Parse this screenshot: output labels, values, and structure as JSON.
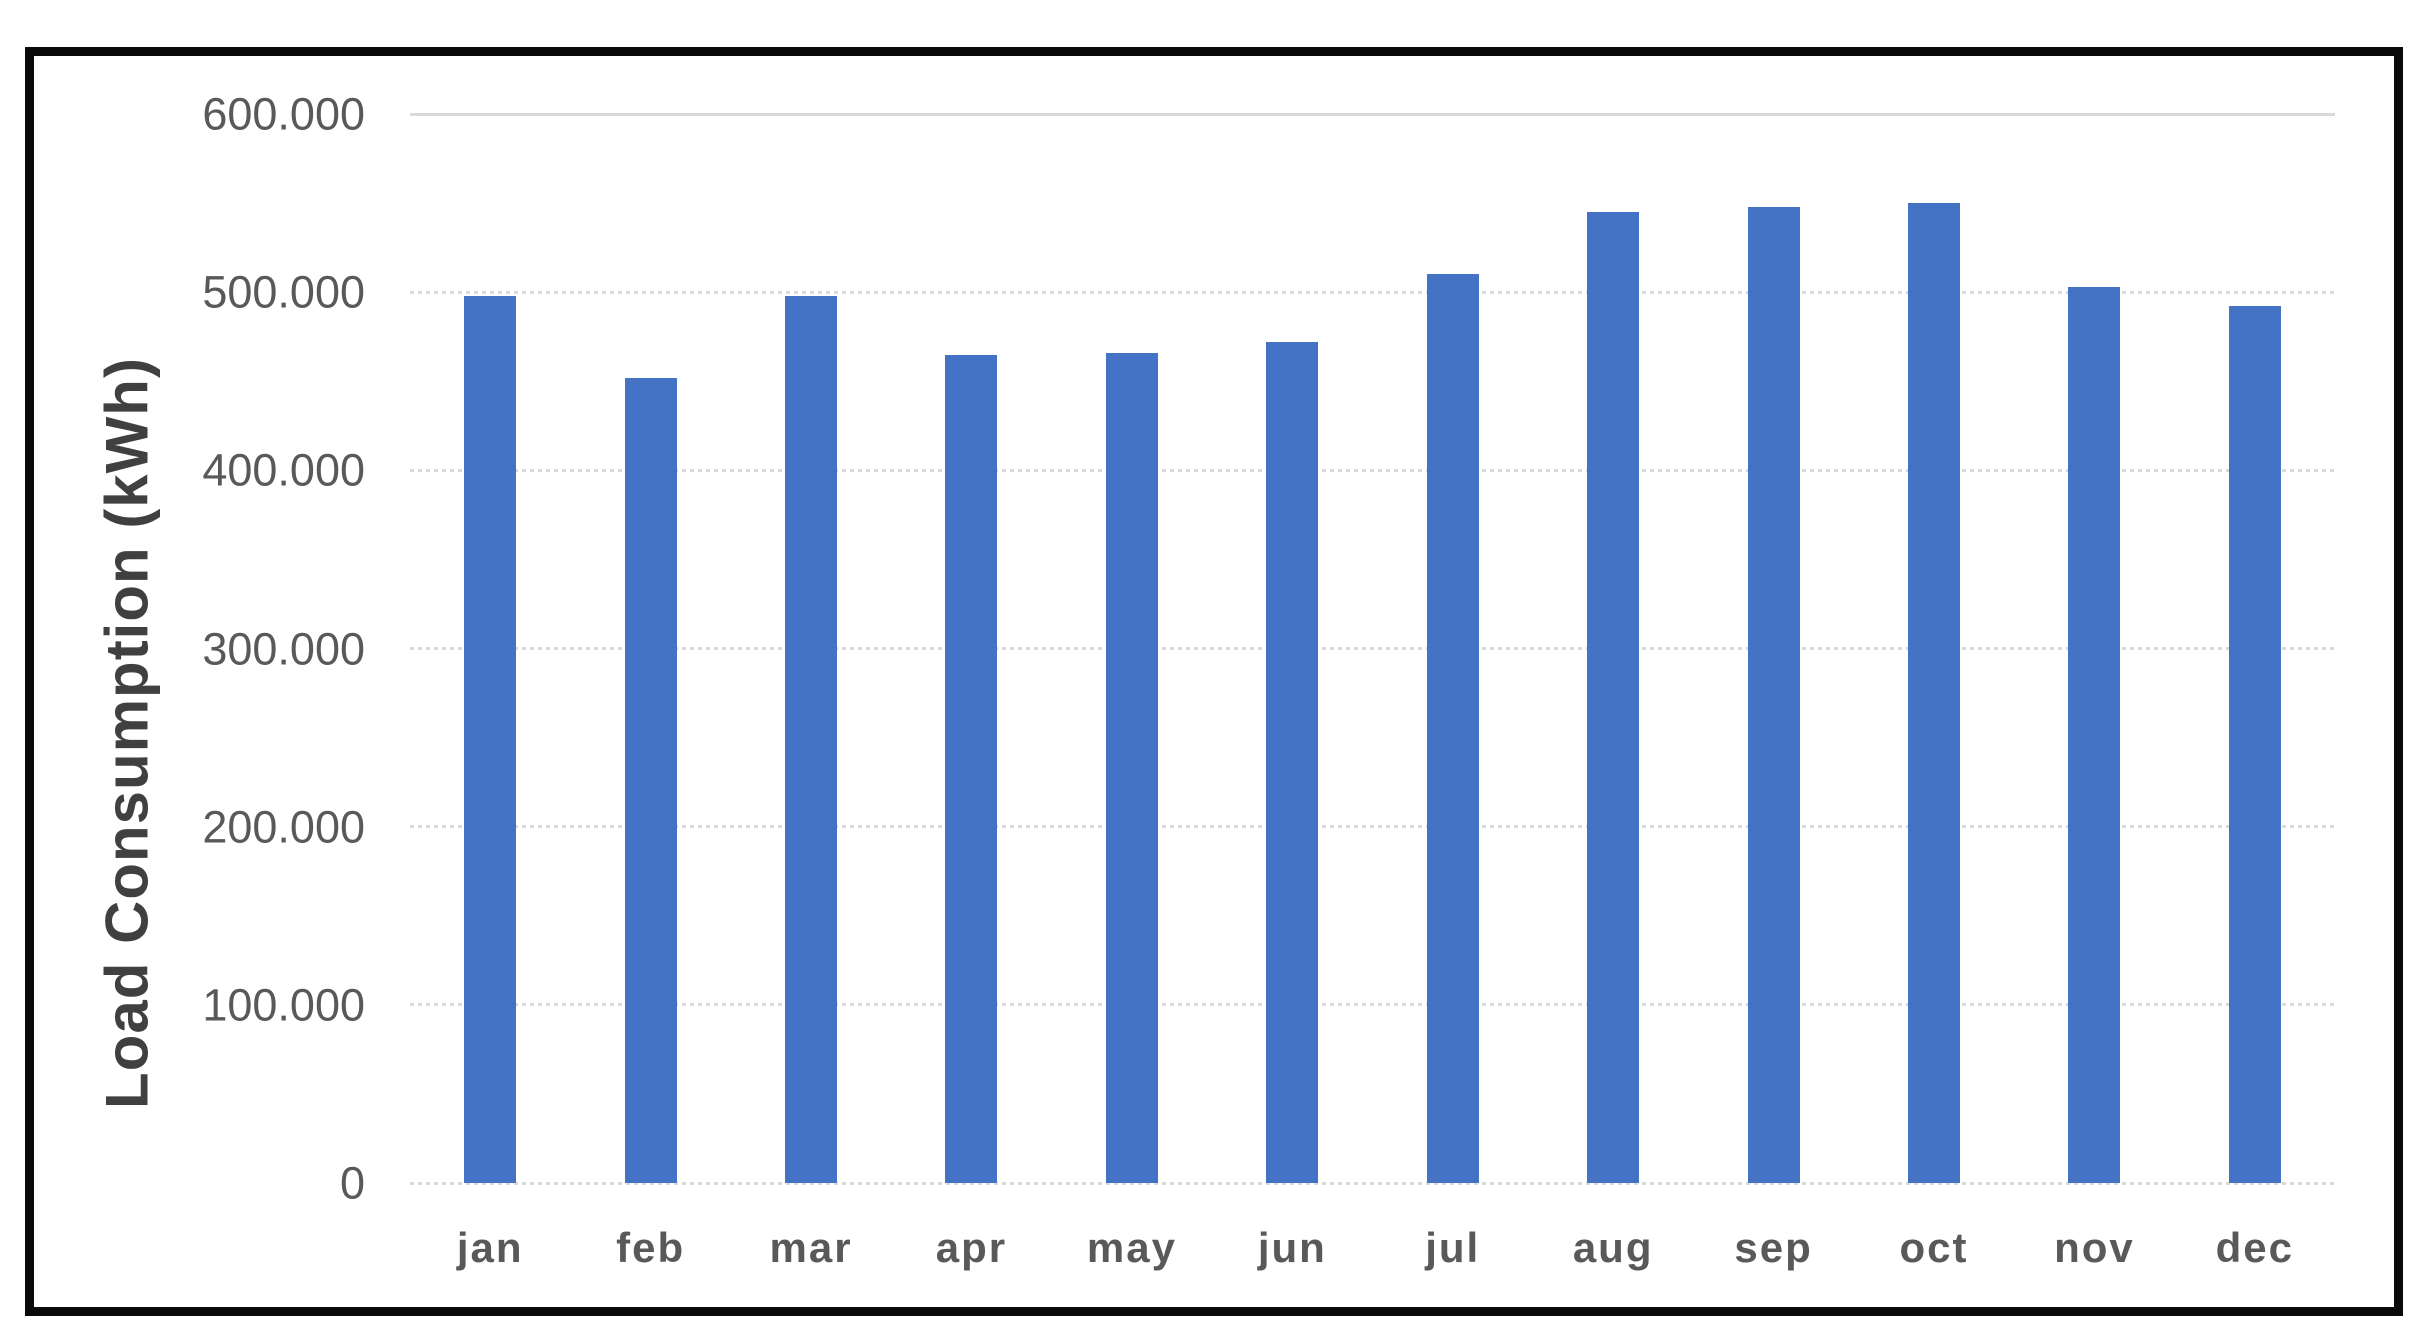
{
  "chart_data": {
    "type": "bar",
    "title": "",
    "xlabel": "",
    "ylabel": "Load Consumption (kWh)",
    "categories": [
      "jan",
      "feb",
      "mar",
      "apr",
      "may",
      "jun",
      "jul",
      "aug",
      "sep",
      "oct",
      "nov",
      "dec"
    ],
    "values": [
      498000,
      452000,
      498000,
      465000,
      466000,
      472000,
      510000,
      545000,
      548000,
      550000,
      503000,
      492000
    ],
    "ylim": [
      0,
      600000
    ],
    "ytick_interval": 100000,
    "yticks": [
      {
        "value": 600000,
        "label": "600.000"
      },
      {
        "value": 500000,
        "label": "500.000"
      },
      {
        "value": 400000,
        "label": "400.000"
      },
      {
        "value": 300000,
        "label": "300.000"
      },
      {
        "value": 200000,
        "label": "200.000"
      },
      {
        "value": 100000,
        "label": "100.000"
      },
      {
        "value": 0,
        "label": "0"
      }
    ],
    "grid": true,
    "gridline_style": "dashed, top line solid",
    "legend": false,
    "bar_color": "#4472C4",
    "gridline_color": "#D9D9D9",
    "axis_text_color": "#595959",
    "axis_title_color": "#404040",
    "frame_border_color": "#0A0A0A"
  }
}
